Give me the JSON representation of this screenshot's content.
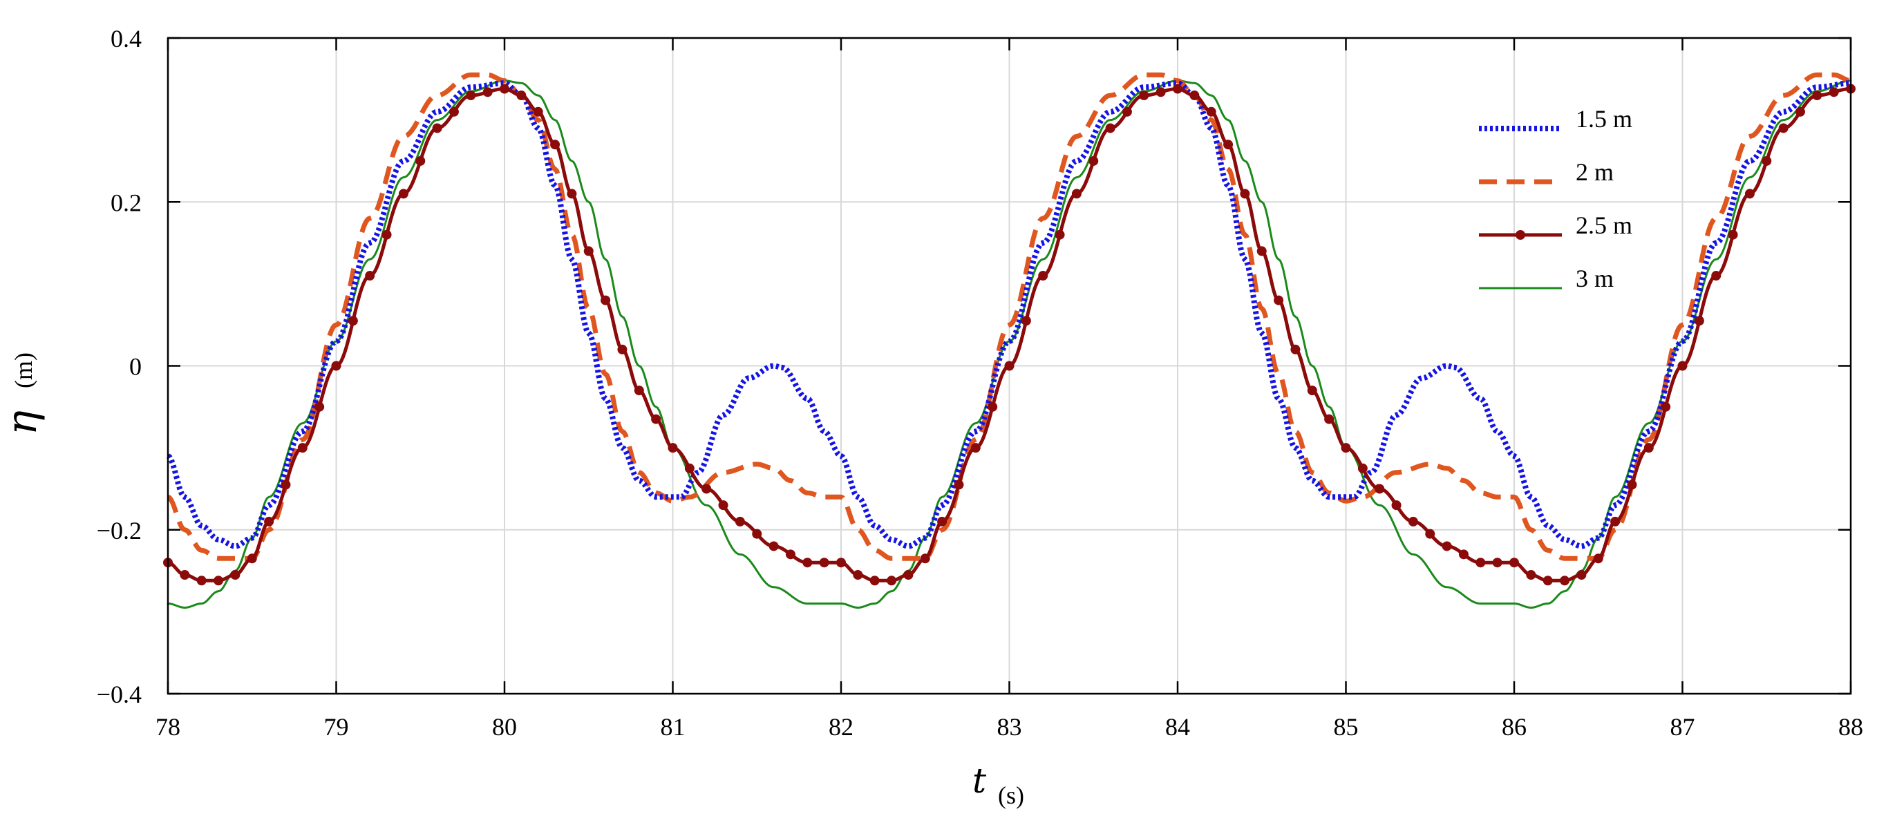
{
  "chart_data": {
    "type": "line",
    "title": "",
    "xlabel": {
      "symbol": "t",
      "unit": "(s)"
    },
    "ylabel": {
      "symbol": "η",
      "unit": "(m)"
    },
    "xlim": [
      78,
      88
    ],
    "ylim": [
      -0.4,
      0.4
    ],
    "xticks": [
      78,
      79,
      80,
      81,
      82,
      83,
      84,
      85,
      86,
      87,
      88
    ],
    "xtick_labels": [
      "78",
      "79",
      "80",
      "81",
      "82",
      "83",
      "84",
      "85",
      "86",
      "87",
      "88"
    ],
    "yticks": [
      0.4,
      0.2,
      0,
      -0.2,
      -0.4
    ],
    "ytick_labels": [
      "0.4",
      "0.2",
      "0",
      "−0.2",
      "−0.4"
    ],
    "grid": true,
    "legend_position": "top-right",
    "period": 4,
    "series": [
      {
        "name": "1.5 m",
        "color": "#1414e6",
        "style": "dotted",
        "phase_points": [
          [
            0.0,
            -0.11
          ],
          [
            0.1,
            -0.16
          ],
          [
            0.2,
            -0.195
          ],
          [
            0.3,
            -0.212
          ],
          [
            0.4,
            -0.22
          ],
          [
            0.5,
            -0.21
          ],
          [
            0.6,
            -0.17
          ],
          [
            0.8,
            -0.08
          ],
          [
            1.0,
            0.03
          ],
          [
            1.2,
            0.15
          ],
          [
            1.4,
            0.25
          ],
          [
            1.6,
            0.31
          ],
          [
            1.8,
            0.34
          ],
          [
            2.0,
            0.345
          ],
          [
            2.1,
            0.33
          ],
          [
            2.2,
            0.29
          ],
          [
            2.3,
            0.22
          ],
          [
            2.4,
            0.13
          ],
          [
            2.5,
            0.04
          ],
          [
            2.6,
            -0.04
          ],
          [
            2.7,
            -0.1
          ],
          [
            2.8,
            -0.14
          ],
          [
            2.9,
            -0.16
          ],
          [
            3.05,
            -0.16
          ],
          [
            3.15,
            -0.13
          ],
          [
            3.3,
            -0.06
          ],
          [
            3.45,
            -0.015
          ],
          [
            3.6,
            -0.0
          ],
          [
            3.65,
            -0.002
          ],
          [
            3.8,
            -0.04
          ],
          [
            3.9,
            -0.08
          ],
          [
            4.0,
            -0.11
          ]
        ]
      },
      {
        "name": "2 m",
        "color": "#e0561f",
        "style": "dashed",
        "phase_points": [
          [
            0.0,
            -0.16
          ],
          [
            0.1,
            -0.2
          ],
          [
            0.2,
            -0.225
          ],
          [
            0.3,
            -0.235
          ],
          [
            0.5,
            -0.235
          ],
          [
            0.6,
            -0.2
          ],
          [
            0.8,
            -0.09
          ],
          [
            1.0,
            0.05
          ],
          [
            1.2,
            0.18
          ],
          [
            1.4,
            0.28
          ],
          [
            1.6,
            0.33
          ],
          [
            1.8,
            0.355
          ],
          [
            1.9,
            0.355
          ],
          [
            2.0,
            0.348
          ],
          [
            2.1,
            0.33
          ],
          [
            2.2,
            0.3
          ],
          [
            2.3,
            0.24
          ],
          [
            2.4,
            0.16
          ],
          [
            2.5,
            0.07
          ],
          [
            2.6,
            -0.01
          ],
          [
            2.7,
            -0.08
          ],
          [
            2.8,
            -0.13
          ],
          [
            2.9,
            -0.155
          ],
          [
            3.0,
            -0.165
          ],
          [
            3.1,
            -0.16
          ],
          [
            3.3,
            -0.13
          ],
          [
            3.5,
            -0.12
          ],
          [
            3.6,
            -0.125
          ],
          [
            3.7,
            -0.14
          ],
          [
            3.8,
            -0.155
          ],
          [
            3.9,
            -0.16
          ],
          [
            4.0,
            -0.16
          ]
        ]
      },
      {
        "name": "2.5 m",
        "color": "#8b0a0a",
        "style": "solid-markers",
        "phase_points": [
          [
            0.0,
            -0.24
          ],
          [
            0.1,
            -0.255
          ],
          [
            0.2,
            -0.262
          ],
          [
            0.3,
            -0.262
          ],
          [
            0.4,
            -0.255
          ],
          [
            0.5,
            -0.235
          ],
          [
            0.6,
            -0.19
          ],
          [
            0.8,
            -0.1
          ],
          [
            1.0,
            0.0
          ],
          [
            1.2,
            0.11
          ],
          [
            1.4,
            0.21
          ],
          [
            1.6,
            0.29
          ],
          [
            1.8,
            0.33
          ],
          [
            2.0,
            0.338
          ],
          [
            2.1,
            0.33
          ],
          [
            2.2,
            0.31
          ],
          [
            2.3,
            0.27
          ],
          [
            2.4,
            0.21
          ],
          [
            2.5,
            0.14
          ],
          [
            2.6,
            0.08
          ],
          [
            2.7,
            0.02
          ],
          [
            2.8,
            -0.03
          ],
          [
            2.9,
            -0.065
          ],
          [
            3.0,
            -0.1
          ],
          [
            3.2,
            -0.15
          ],
          [
            3.4,
            -0.19
          ],
          [
            3.6,
            -0.22
          ],
          [
            3.8,
            -0.24
          ],
          [
            4.0,
            -0.24
          ]
        ]
      },
      {
        "name": "3 m",
        "color": "#1a8a1a",
        "style": "solid-thin",
        "phase_points": [
          [
            0.0,
            -0.29
          ],
          [
            0.1,
            -0.295
          ],
          [
            0.2,
            -0.29
          ],
          [
            0.3,
            -0.275
          ],
          [
            0.4,
            -0.25
          ],
          [
            0.5,
            -0.21
          ],
          [
            0.6,
            -0.16
          ],
          [
            0.8,
            -0.07
          ],
          [
            1.0,
            0.03
          ],
          [
            1.2,
            0.13
          ],
          [
            1.4,
            0.23
          ],
          [
            1.6,
            0.3
          ],
          [
            1.8,
            0.335
          ],
          [
            2.0,
            0.348
          ],
          [
            2.1,
            0.345
          ],
          [
            2.2,
            0.33
          ],
          [
            2.3,
            0.3
          ],
          [
            2.4,
            0.25
          ],
          [
            2.5,
            0.2
          ],
          [
            2.6,
            0.13
          ],
          [
            2.7,
            0.06
          ],
          [
            2.8,
            0.0
          ],
          [
            2.9,
            -0.05
          ],
          [
            3.0,
            -0.1
          ],
          [
            3.2,
            -0.17
          ],
          [
            3.4,
            -0.23
          ],
          [
            3.6,
            -0.27
          ],
          [
            3.8,
            -0.29
          ],
          [
            4.0,
            -0.29
          ]
        ]
      }
    ]
  }
}
